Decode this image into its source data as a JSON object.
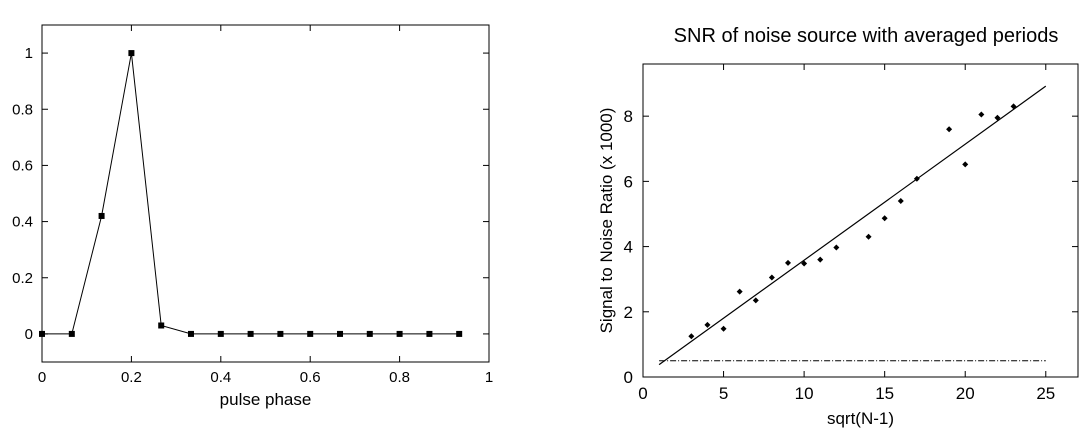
{
  "chart_data": [
    {
      "type": "line",
      "title": "",
      "xlabel": "pulse phase",
      "ylabel": "",
      "xlim": [
        0,
        1
      ],
      "ylim": [
        -0.1,
        1.1
      ],
      "xticks": [
        "0",
        "0.2",
        "0.4",
        "0.6",
        "0.8",
        "1"
      ],
      "yticks": [
        "0",
        "0.2",
        "0.4",
        "0.6",
        "0.8",
        "1"
      ],
      "grid": false,
      "series": [
        {
          "marker": "square",
          "x": [
            0,
            0.0667,
            0.1333,
            0.2,
            0.2667,
            0.3333,
            0.4,
            0.4667,
            0.5333,
            0.6,
            0.6667,
            0.7333,
            0.8,
            0.8667,
            0.9333
          ],
          "y": [
            0,
            0,
            0.42,
            1.0,
            0.03,
            0,
            0,
            0,
            0,
            0,
            0,
            0,
            0,
            0,
            0
          ]
        }
      ]
    },
    {
      "type": "scatter",
      "title": "SNR of noise source with averaged periods",
      "xlabel": "sqrt(N-1)",
      "ylabel": "Signal to Noise Ratio (x 1000)",
      "xlim": [
        0,
        27
      ],
      "ylim": [
        0,
        9.6
      ],
      "xticks": [
        "0",
        "5",
        "10",
        "15",
        "20",
        "25"
      ],
      "yticks": [
        "0",
        "2",
        "4",
        "6",
        "8"
      ],
      "grid": false,
      "points": {
        "x": [
          3,
          4,
          5,
          6,
          7,
          8,
          9,
          10,
          11,
          12,
          14,
          15,
          16,
          17,
          19,
          20,
          21,
          22,
          23
        ],
        "y": [
          1.25,
          1.6,
          1.48,
          2.62,
          2.35,
          3.05,
          3.5,
          3.48,
          3.6,
          3.97,
          4.3,
          4.87,
          5.4,
          6.08,
          7.6,
          6.52,
          8.05,
          7.95,
          8.3
        ]
      },
      "fit_line": {
        "x": [
          1,
          25
        ],
        "y": [
          0.38,
          8.92
        ]
      },
      "threshold_line": {
        "x": [
          1,
          25
        ],
        "y": [
          0.5,
          0.5
        ],
        "style": "dash-dot"
      }
    }
  ]
}
